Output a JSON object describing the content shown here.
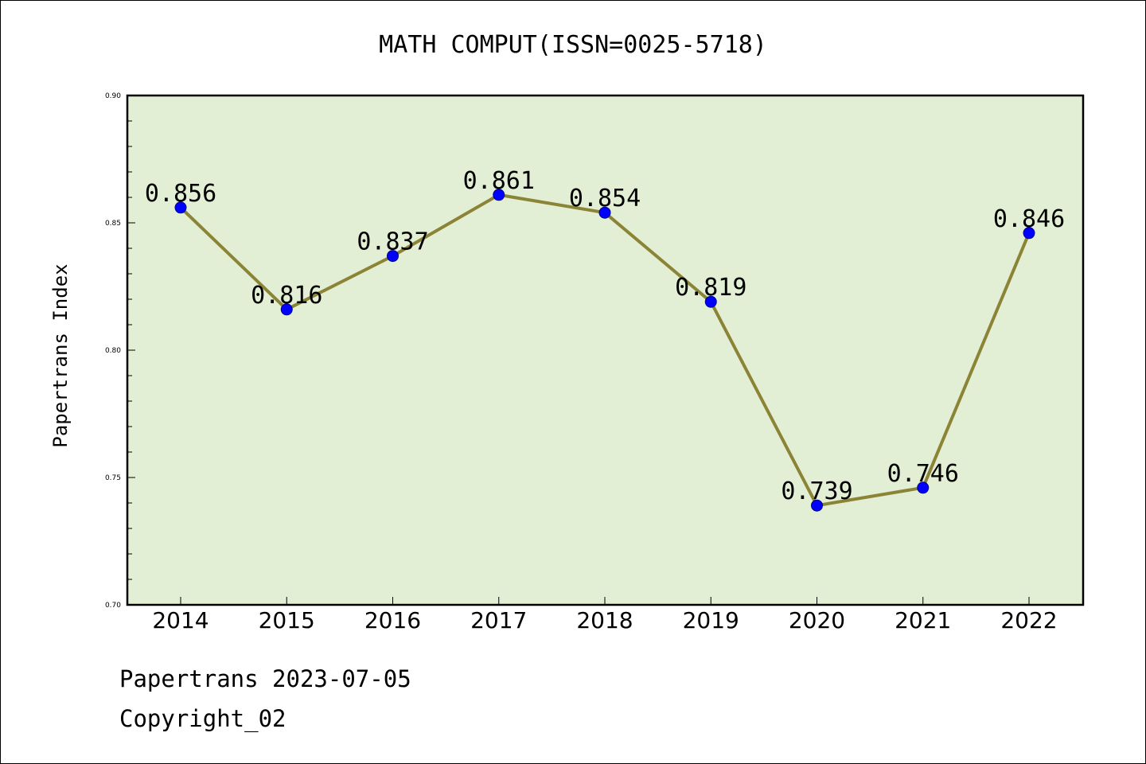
{
  "chart_data": {
    "type": "line",
    "title": "MATH COMPUT(ISSN=0025-5718)",
    "xlabel": "",
    "ylabel": "Papertrans Index",
    "categories": [
      "2014",
      "2015",
      "2016",
      "2017",
      "2018",
      "2019",
      "2020",
      "2021",
      "2022"
    ],
    "values": [
      0.856,
      0.816,
      0.837,
      0.861,
      0.854,
      0.819,
      0.739,
      0.746,
      0.846
    ],
    "data_labels": [
      "0.856",
      "0.816",
      "0.837",
      "0.861",
      "0.854",
      "0.819",
      "0.739",
      "0.746",
      "0.846"
    ],
    "ylim": [
      0.7,
      0.9
    ],
    "yticks": [
      0.7,
      0.75,
      0.8,
      0.85,
      0.9
    ],
    "ytick_labels": [
      "0.70",
      "0.75",
      "0.80",
      "0.85",
      "0.90"
    ],
    "grid": false,
    "colors": {
      "plot_background": "#e2efd4",
      "line": "#8b8436",
      "marker": "#0000ff"
    }
  },
  "footer": {
    "line1": "Papertrans 2023-07-05",
    "line2": "Copyright_02"
  }
}
